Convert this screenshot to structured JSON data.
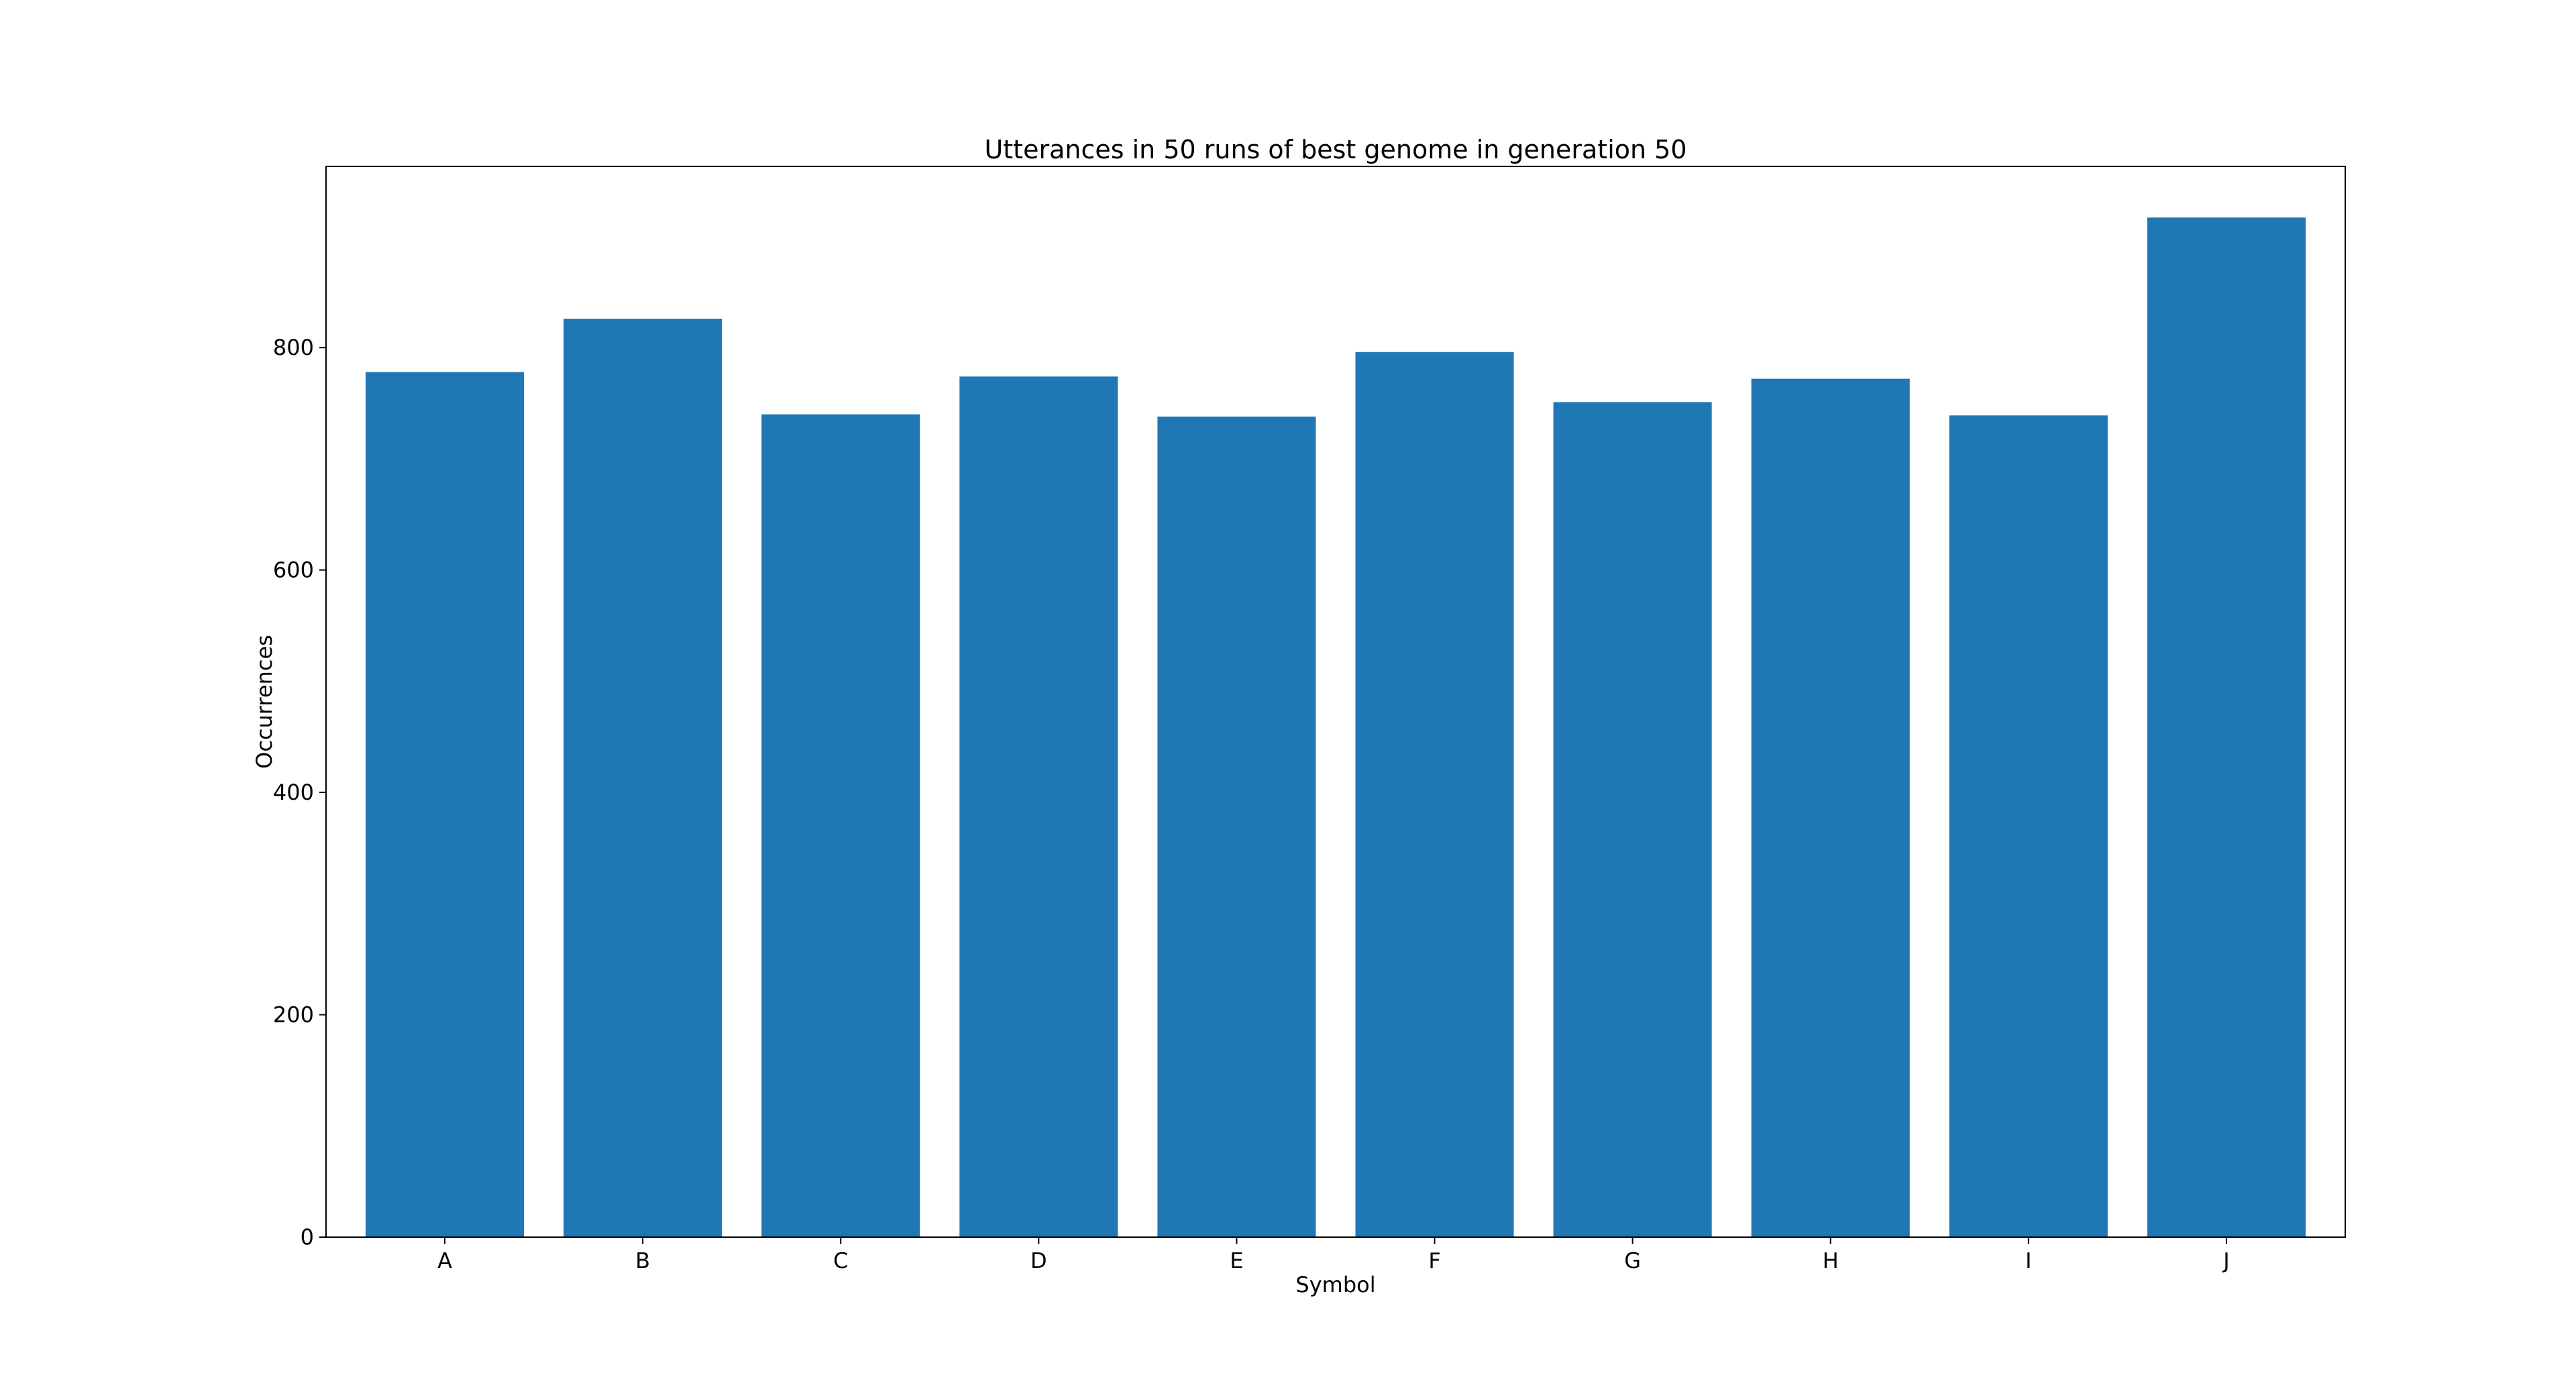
{
  "chart_data": {
    "type": "bar",
    "title": "Utterances in 50 runs of best genome in generation 50",
    "xlabel": "Symbol",
    "ylabel": "Occurrences",
    "categories": [
      "A",
      "B",
      "C",
      "D",
      "E",
      "F",
      "G",
      "H",
      "I",
      "J"
    ],
    "values": [
      778,
      826,
      740,
      774,
      738,
      796,
      751,
      772,
      739,
      917
    ],
    "ylim": [
      0,
      963
    ],
    "yticks": [
      0,
      200,
      400,
      600,
      800
    ],
    "grid": false,
    "legend": "none",
    "bar_color": "#1f77b4"
  }
}
